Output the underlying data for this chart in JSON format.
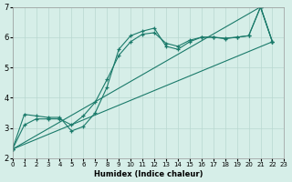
{
  "xlabel": "Humidex (Indice chaleur)",
  "background_color": "#d6eee8",
  "grid_color": "#b8d8d0",
  "line_color": "#1a7a6a",
  "xlim": [
    0,
    23
  ],
  "ylim": [
    2,
    7
  ],
  "yticks": [
    2,
    3,
    4,
    5,
    6,
    7
  ],
  "xticks": [
    0,
    1,
    2,
    3,
    4,
    5,
    6,
    7,
    8,
    9,
    10,
    11,
    12,
    13,
    14,
    15,
    16,
    17,
    18,
    19,
    20,
    21,
    22,
    23
  ],
  "series": [
    {
      "x": [
        0,
        1,
        2,
        3,
        4,
        5,
        6,
        7,
        8,
        9,
        10,
        11,
        12,
        13,
        14,
        15,
        16,
        17,
        18,
        19,
        20,
        21,
        22
      ],
      "y": [
        2.3,
        3.45,
        3.4,
        3.35,
        3.35,
        2.9,
        3.05,
        3.5,
        4.35,
        5.6,
        6.05,
        6.2,
        6.3,
        5.7,
        5.6,
        5.85,
        6.0,
        6.0,
        5.95,
        6.0,
        6.05,
        7.0,
        5.85
      ]
    },
    {
      "x": [
        0,
        1,
        2,
        3,
        4,
        5,
        6,
        7,
        8,
        9,
        10,
        11,
        12,
        13,
        14,
        15,
        16,
        17,
        18,
        19,
        20,
        21,
        22
      ],
      "y": [
        2.3,
        3.1,
        3.3,
        3.3,
        3.3,
        3.1,
        3.4,
        3.85,
        4.6,
        5.4,
        5.85,
        6.1,
        6.15,
        5.8,
        5.7,
        5.9,
        6.0,
        6.0,
        5.97,
        6.0,
        6.05,
        7.0,
        5.85
      ]
    },
    {
      "x": [
        0,
        22
      ],
      "y": [
        2.3,
        5.85
      ]
    },
    {
      "x": [
        0,
        21,
        22
      ],
      "y": [
        2.3,
        7.0,
        5.85
      ]
    }
  ]
}
